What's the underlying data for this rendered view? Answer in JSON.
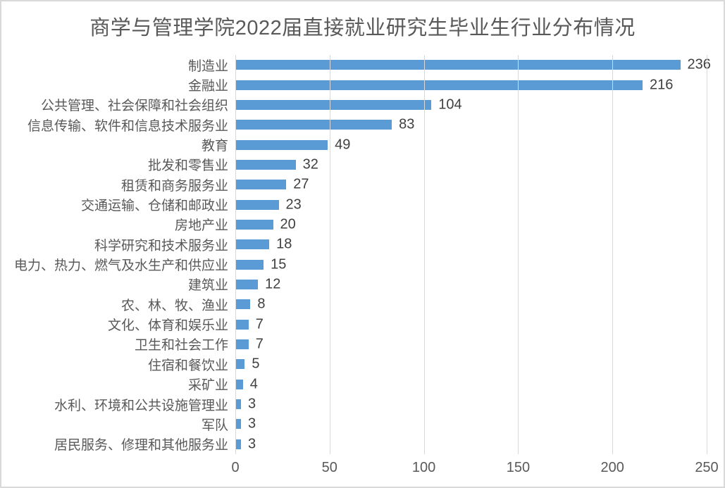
{
  "colors": {
    "bar": "#5b9bd5",
    "gridline": "#d9d9d9",
    "chart_border": "#d9d9d9",
    "background": "#ffffff",
    "title_text": "#595959",
    "category_text": "#595959",
    "value_text": "#404040",
    "tick_text": "#595959"
  },
  "chart_data": {
    "type": "bar",
    "orientation": "horizontal",
    "title": "商学与管理学院2022届直接就业研究生毕业生行业分布情况",
    "categories": [
      "制造业",
      "金融业",
      "公共管理、社会保障和社会组织",
      "信息传输、软件和信息技术服务业",
      "教育",
      "批发和零售业",
      "租赁和商务服务业",
      "交通运输、仓储和邮政业",
      "房地产业",
      "科学研究和技术服务业",
      "电力、热力、燃气及水生产和供应业",
      "建筑业",
      "农、林、牧、渔业",
      "文化、体育和娱乐业",
      "卫生和社会工作",
      "住宿和餐饮业",
      "采矿业",
      "水利、环境和公共设施管理业",
      "军队",
      "居民服务、修理和其他服务业"
    ],
    "values": [
      236,
      216,
      104,
      83,
      49,
      32,
      27,
      23,
      20,
      18,
      15,
      12,
      8,
      7,
      7,
      5,
      4,
      3,
      3,
      3
    ],
    "xlabel": "",
    "ylabel": "",
    "xlim": [
      0,
      250
    ],
    "x_ticks": [
      0,
      50,
      100,
      150,
      200,
      250
    ],
    "grid": "vertical",
    "legend": "none",
    "data_labels": true
  }
}
